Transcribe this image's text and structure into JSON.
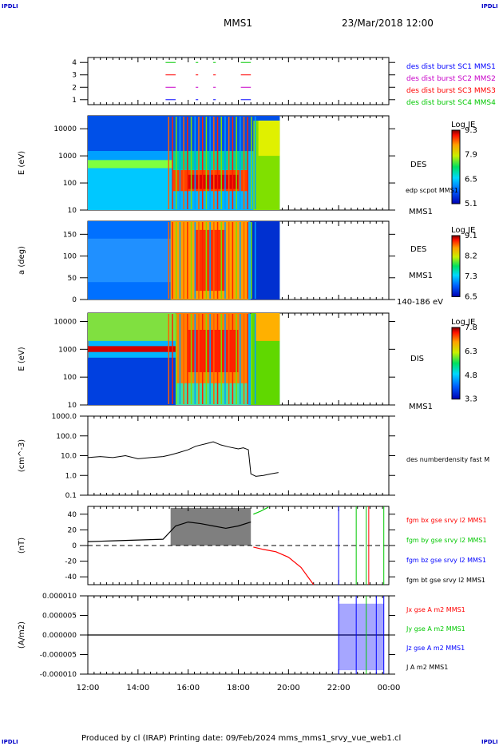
{
  "header": {
    "corner_label": "IPDLI",
    "spacecraft": "MMS1",
    "datetime": "23/Mar/2018 12:00"
  },
  "footer": {
    "text": "Produced by cl (IRAP)   Printing date: 09/Feb/2024   mms_mms1_srvy_vue_web1.cl"
  },
  "colors": {
    "red": "#ff0000",
    "green": "#00c800",
    "blue": "#0000ff",
    "magenta": "#c800c8",
    "black": "#000000"
  },
  "chart_data": [
    {
      "type": "line",
      "id": "burst",
      "ylim": [
        0.6,
        4.4
      ],
      "yticks": [
        "1",
        "2",
        "3",
        "4"
      ],
      "legend": [
        {
          "label": "des dist burst SC1 MMS1",
          "color": "#0000ff"
        },
        {
          "label": "des dist burst SC2 MMS2",
          "color": "#c800c8"
        },
        {
          "label": "des dist burst SC3 MMS3",
          "color": "#ff0000"
        },
        {
          "label": "des dist burst SC4 MMS4",
          "color": "#00c800"
        }
      ],
      "segments": [
        [
          15.1,
          15.5
        ],
        [
          16.3,
          16.4
        ],
        [
          17.0,
          17.1
        ],
        [
          18.1,
          18.5
        ]
      ]
    },
    {
      "type": "heatmap",
      "id": "des_energy",
      "ylabel": "E (eV)",
      "scale": "log",
      "ylim": [
        10,
        30000
      ],
      "yticks": [
        "10",
        "100",
        "1000",
        "10000"
      ],
      "label": "DES",
      "sublabel": "edp scpot MMS1",
      "under_label": "MMS1",
      "colorbar": {
        "title": "Log JE",
        "ticks": [
          "9.3",
          "7.9",
          "6.5",
          "5.1"
        ]
      },
      "data_end_hour": 19.65
    },
    {
      "type": "heatmap",
      "id": "des_pitch",
      "ylabel": "a (deg)",
      "ylim": [
        0,
        180
      ],
      "yticks": [
        "0",
        "50",
        "100",
        "150"
      ],
      "label": "DES",
      "sublabel": "MMS1",
      "under_label": "140-186 eV",
      "colorbar": {
        "title": "Log JE",
        "ticks": [
          "9.1",
          "8.2",
          "7.3",
          "6.5"
        ]
      },
      "data_end_hour": 19.65
    },
    {
      "type": "heatmap",
      "id": "dis_energy",
      "ylabel": "E (eV)",
      "scale": "log",
      "ylim": [
        10,
        20000
      ],
      "yticks": [
        "10",
        "100",
        "1000",
        "10000"
      ],
      "label": "DIS",
      "under_label": "MMS1",
      "colorbar": {
        "title": "Log JE",
        "ticks": [
          "7.8",
          "6.3",
          "4.8",
          "3.3"
        ]
      },
      "data_end_hour": 19.65
    },
    {
      "type": "line",
      "id": "density",
      "ylabel": "(cm^-3)",
      "scale": "log",
      "ylim": [
        0.1,
        1000
      ],
      "yticks": [
        "0.1",
        "1.0",
        "10.0",
        "100.0",
        "1000.0"
      ],
      "legend": [
        {
          "label": "des numberdensity fast M",
          "color": "#000000"
        }
      ],
      "series": [
        {
          "x": [
            12.0,
            12.5,
            13.0,
            13.5,
            14.0,
            14.5,
            15.0,
            15.3,
            15.6,
            16.0,
            16.3,
            16.7,
            17.0,
            17.3,
            17.6,
            18.0,
            18.2,
            18.4,
            18.5,
            18.7,
            19.0,
            19.3,
            19.6
          ],
          "y": [
            8,
            9,
            8,
            10,
            7,
            8,
            9,
            11,
            14,
            20,
            30,
            40,
            50,
            35,
            28,
            22,
            25,
            20,
            1.2,
            0.9,
            1.0,
            1.2,
            1.4
          ]
        }
      ]
    },
    {
      "type": "line",
      "id": "fgm",
      "ylabel": "(nT)",
      "ylim": [
        -50,
        50
      ],
      "yticks": [
        "-40",
        "-20",
        "0",
        "20",
        "40"
      ],
      "legend": [
        {
          "label": "fgm bx gse srvy l2 MMS1",
          "color": "#ff0000"
        },
        {
          "label": "fgm by gse srvy l2 MMS1",
          "color": "#00c800"
        },
        {
          "label": "fgm bz gse srvy l2 MMS1",
          "color": "#0000ff"
        },
        {
          "label": "fgm bt gse srvy l2 MMS1",
          "color": "#000000"
        }
      ],
      "series": [
        {
          "name": "fgm bt gse srvy l2 MMS1",
          "x": [
            12.0,
            13.0,
            14.0,
            15.0,
            15.5,
            16.0,
            16.5,
            17.0,
            17.5,
            18.0,
            18.5
          ],
          "y": [
            5,
            6,
            7,
            8,
            25,
            30,
            28,
            25,
            22,
            25,
            30
          ]
        },
        {
          "name": "fgm bx gse srvy l2 MMS1",
          "x": [
            18.6,
            19.0,
            19.5,
            20.0,
            20.5,
            21.0
          ],
          "y": [
            -2,
            -5,
            -8,
            -15,
            -28,
            -50
          ]
        },
        {
          "name": "fgm by gse srvy l2 MMS1",
          "x": [
            18.6,
            18.9,
            19.2
          ],
          "y": [
            40,
            44,
            49
          ]
        }
      ]
    },
    {
      "type": "line",
      "id": "currents",
      "ylabel": "(A/m2)",
      "ylim": [
        -1e-05,
        1e-05
      ],
      "yticks": [
        "-0.000010",
        "-0.000005",
        "0.000000",
        "0.000005",
        "0.000010"
      ],
      "legend": [
        {
          "label": "Jx gse A m2 MMS1",
          "color": "#ff0000"
        },
        {
          "label": "Jy gse A m2 MMS1",
          "color": "#00c800"
        },
        {
          "label": "Jz gse A m2 MMS1",
          "color": "#0000ff"
        },
        {
          "label": "J A m2 MMS1",
          "color": "#000000"
        }
      ]
    }
  ],
  "xaxis": {
    "ticks": [
      "12:00",
      "14:00",
      "16:00",
      "18:00",
      "20:00",
      "22:00",
      "00:00"
    ],
    "range_hours": [
      12,
      24
    ]
  }
}
